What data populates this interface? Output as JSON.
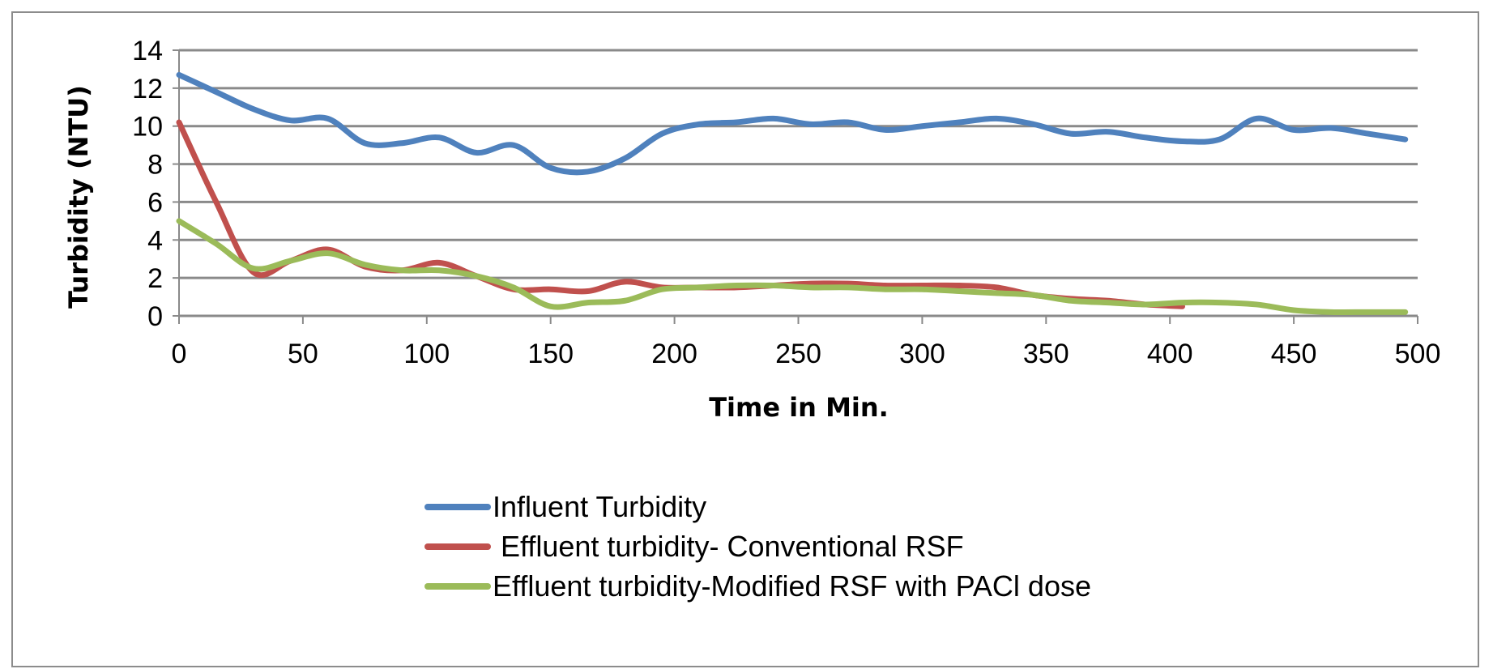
{
  "chart_data": {
    "type": "line",
    "title": "",
    "xlabel": "Time in Min.",
    "ylabel": "Turbidity (NTU)",
    "xlim": [
      0,
      500
    ],
    "ylim": [
      0,
      14
    ],
    "x_ticks": [
      0,
      50,
      100,
      150,
      200,
      250,
      300,
      350,
      400,
      450,
      500
    ],
    "y_ticks": [
      0,
      2,
      4,
      6,
      8,
      10,
      12,
      14
    ],
    "grid": "horizontal",
    "legend_position": "bottom",
    "series": [
      {
        "name": "Influent Turbidity",
        "color": "#4f81bd",
        "x": [
          0,
          15,
          30,
          45,
          60,
          75,
          90,
          105,
          120,
          135,
          150,
          165,
          180,
          195,
          210,
          225,
          240,
          255,
          270,
          285,
          300,
          315,
          330,
          345,
          360,
          375,
          390,
          405,
          420,
          435,
          450,
          465,
          480,
          495
        ],
        "values": [
          12.7,
          11.8,
          10.9,
          10.3,
          10.4,
          9.1,
          9.1,
          9.4,
          8.6,
          9.0,
          7.8,
          7.6,
          8.3,
          9.6,
          10.1,
          10.2,
          10.4,
          10.1,
          10.2,
          9.8,
          10.0,
          10.2,
          10.4,
          10.1,
          9.6,
          9.7,
          9.4,
          9.2,
          9.3,
          10.4,
          9.8,
          9.9,
          9.6,
          9.3
        ]
      },
      {
        "name": " Effluent turbidity- Conventional RSF",
        "color": "#c0504d",
        "x": [
          0,
          15,
          30,
          45,
          60,
          75,
          90,
          105,
          120,
          135,
          150,
          165,
          180,
          195,
          210,
          225,
          240,
          255,
          270,
          285,
          300,
          315,
          330,
          345,
          360,
          375,
          390,
          405
        ],
        "values": [
          10.2,
          6.0,
          2.3,
          2.9,
          3.5,
          2.6,
          2.4,
          2.8,
          2.1,
          1.4,
          1.4,
          1.3,
          1.8,
          1.5,
          1.5,
          1.5,
          1.6,
          1.7,
          1.7,
          1.6,
          1.6,
          1.6,
          1.5,
          1.1,
          0.9,
          0.8,
          0.6,
          0.5
        ]
      },
      {
        "name": "Effluent turbidity-Modified RSF with PACl dose",
        "color": "#9bbb59",
        "x": [
          0,
          15,
          30,
          45,
          60,
          75,
          90,
          105,
          120,
          135,
          150,
          165,
          180,
          195,
          210,
          225,
          240,
          255,
          270,
          285,
          300,
          315,
          330,
          345,
          360,
          375,
          390,
          405,
          420,
          435,
          450,
          465,
          480,
          495
        ],
        "values": [
          5.0,
          3.8,
          2.5,
          2.9,
          3.3,
          2.7,
          2.4,
          2.4,
          2.1,
          1.5,
          0.5,
          0.7,
          0.8,
          1.4,
          1.5,
          1.6,
          1.6,
          1.5,
          1.5,
          1.4,
          1.4,
          1.3,
          1.2,
          1.1,
          0.8,
          0.7,
          0.6,
          0.7,
          0.7,
          0.6,
          0.3,
          0.2,
          0.2,
          0.2
        ]
      }
    ]
  }
}
